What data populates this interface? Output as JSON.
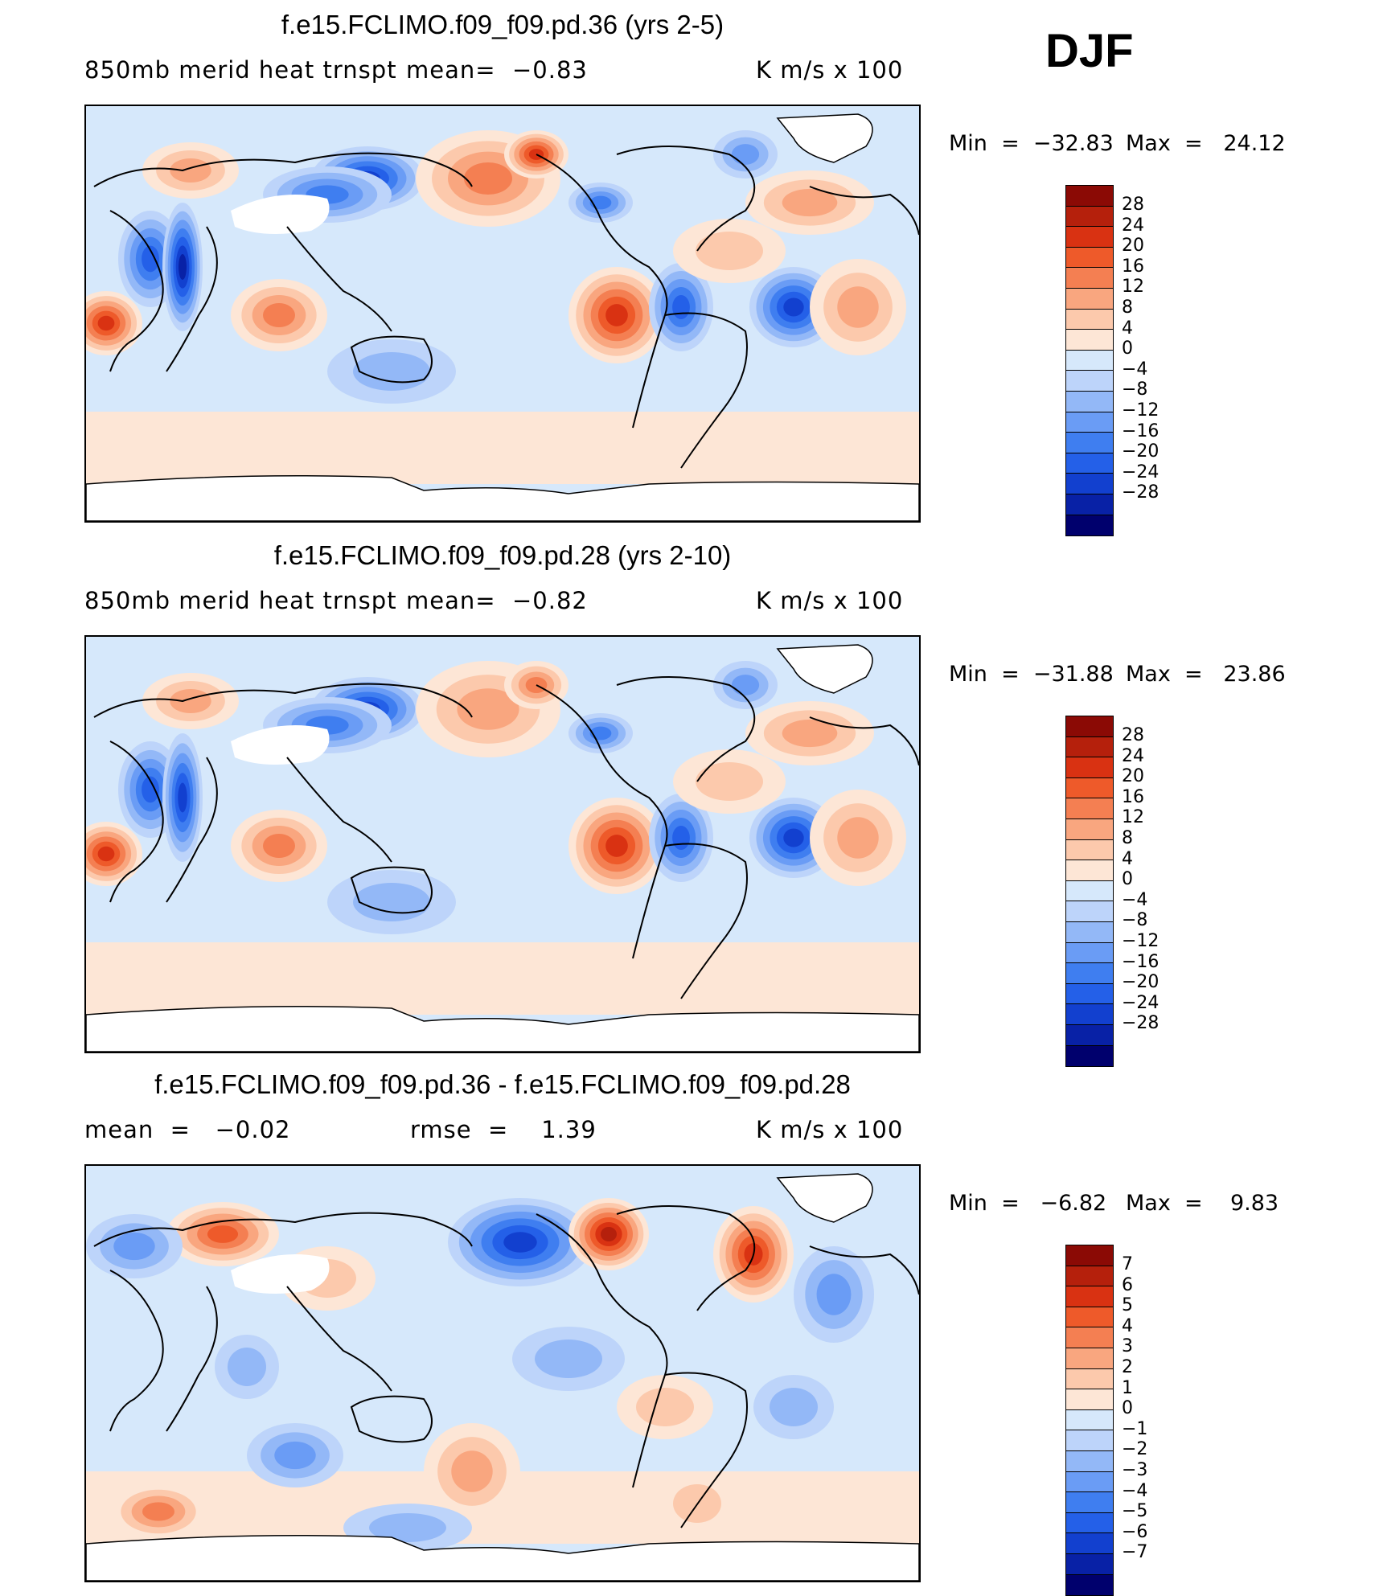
{
  "season": "DJF",
  "palette": [
    "#00006d",
    "#0821a6",
    "#1240cf",
    "#2460e8",
    "#3f7ef0",
    "#6a9cf5",
    "#93b8f7",
    "#bdd4fa",
    "#d6e8fb",
    "#fde6d6",
    "#fcc9ac",
    "#f9a67f",
    "#f47f52",
    "#ee5a2a",
    "#d93212",
    "#b5200c",
    "#8b0a05"
  ],
  "chart_data": [
    {
      "type": "heatmap",
      "title": "f.e15.FCLIMO.f09_f09.pd.36 (yrs 2-5)",
      "left_label": "850mb merid heat trnspt",
      "mean_text": "mean=  −0.83",
      "units": "K m/s x 100",
      "min": -32.83,
      "max": 24.12,
      "min_label": "Min  =  −32.83",
      "max_label": "Max  =   24.12",
      "colorbar_levels": [
        "28",
        "24",
        "20",
        "16",
        "12",
        "8",
        "4",
        "0",
        "−4",
        "−8",
        "−12",
        "−16",
        "−20",
        "−24",
        "−28"
      ],
      "field": "meridional heat transport at 850 mb, global map"
    },
    {
      "type": "heatmap",
      "title": "f.e15.FCLIMO.f09_f09.pd.28 (yrs 2-10)",
      "left_label": "850mb merid heat trnspt",
      "mean_text": "mean=  −0.82",
      "units": "K m/s x 100",
      "min": -31.88,
      "max": 23.86,
      "min_label": "Min  =  −31.88",
      "max_label": "Max  =   23.86",
      "colorbar_levels": [
        "28",
        "24",
        "20",
        "16",
        "12",
        "8",
        "4",
        "0",
        "−4",
        "−8",
        "−12",
        "−16",
        "−20",
        "−24",
        "−28"
      ],
      "field": "meridional heat transport at 850 mb, global map"
    },
    {
      "type": "heatmap",
      "title": "f.e15.FCLIMO.f09_f09.pd.36 - f.e15.FCLIMO.f09_f09.pd.28",
      "left_label": "mean  =   −0.02",
      "mean_text": "rmse  =    1.39",
      "units": "K m/s x 100",
      "min": -6.82,
      "max": 9.83,
      "min_label": "Min  =   −6.82",
      "max_label": "Max  =    9.83",
      "colorbar_levels": [
        "7",
        "6",
        "5",
        "4",
        "3",
        "2",
        "1",
        "0",
        "−1",
        "−2",
        "−3",
        "−4",
        "−5",
        "−6",
        "−7"
      ],
      "field": "difference map"
    }
  ]
}
